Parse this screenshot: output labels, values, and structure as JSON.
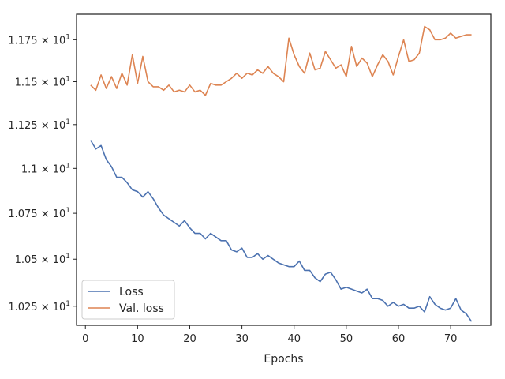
{
  "chart_data": {
    "type": "line",
    "title": "",
    "xlabel": "Epochs",
    "ylabel": "",
    "xlim": [
      -1.7,
      77.7
    ],
    "ylim": [
      10.15,
      11.905
    ],
    "x_ticks": [
      0,
      10,
      20,
      30,
      40,
      50,
      60,
      70
    ],
    "y_ticks": [
      {
        "value": 10.25,
        "mantissa": "1.025",
        "exponent": "1"
      },
      {
        "value": 10.5,
        "mantissa": "1.05",
        "exponent": "1"
      },
      {
        "value": 10.75,
        "mantissa": "1.075",
        "exponent": "1"
      },
      {
        "value": 11.0,
        "mantissa": "1.1",
        "exponent": "1"
      },
      {
        "value": 11.25,
        "mantissa": "1.125",
        "exponent": "1"
      },
      {
        "value": 11.5,
        "mantissa": "1.15",
        "exponent": "1"
      },
      {
        "value": 11.75,
        "mantissa": "1.175",
        "exponent": "1"
      }
    ],
    "y_scale": "log",
    "grid": false,
    "legend_position": "lower-left",
    "series": [
      {
        "name": "Loss",
        "color": "#4c72b0",
        "x": [
          1,
          2,
          3,
          4,
          5,
          6,
          7,
          8,
          9,
          10,
          11,
          12,
          13,
          14,
          15,
          16,
          17,
          18,
          19,
          20,
          21,
          22,
          23,
          24,
          25,
          26,
          27,
          28,
          29,
          30,
          31,
          32,
          33,
          34,
          35,
          36,
          37,
          38,
          39,
          40,
          41,
          42,
          43,
          44,
          45,
          46,
          47,
          48,
          49,
          50,
          51,
          52,
          53,
          54,
          55,
          56,
          57,
          58,
          59,
          60,
          61,
          62,
          63,
          64,
          65,
          66,
          67,
          68,
          69,
          70,
          71,
          72,
          73,
          74
        ],
        "values": [
          11.16,
          11.11,
          11.13,
          11.05,
          11.01,
          10.95,
          10.95,
          10.92,
          10.88,
          10.87,
          10.84,
          10.87,
          10.83,
          10.78,
          10.74,
          10.72,
          10.7,
          10.68,
          10.71,
          10.67,
          10.64,
          10.64,
          10.61,
          10.64,
          10.62,
          10.6,
          10.6,
          10.55,
          10.54,
          10.56,
          10.51,
          10.51,
          10.53,
          10.5,
          10.52,
          10.5,
          10.48,
          10.47,
          10.46,
          10.46,
          10.49,
          10.44,
          10.44,
          10.4,
          10.38,
          10.42,
          10.43,
          10.39,
          10.34,
          10.35,
          10.34,
          10.33,
          10.32,
          10.34,
          10.29,
          10.29,
          10.28,
          10.25,
          10.27,
          10.25,
          10.26,
          10.24,
          10.24,
          10.25,
          10.22,
          10.3,
          10.26,
          10.24,
          10.23,
          10.24,
          10.29,
          10.23,
          10.21,
          10.17
        ]
      },
      {
        "name": "Val. loss",
        "color": "#dd8452",
        "x": [
          1,
          2,
          3,
          4,
          5,
          6,
          7,
          8,
          9,
          10,
          11,
          12,
          13,
          14,
          15,
          16,
          17,
          18,
          19,
          20,
          21,
          22,
          23,
          24,
          25,
          26,
          27,
          28,
          29,
          30,
          31,
          32,
          33,
          34,
          35,
          36,
          37,
          38,
          39,
          40,
          41,
          42,
          43,
          44,
          45,
          46,
          47,
          48,
          49,
          50,
          51,
          52,
          53,
          54,
          55,
          56,
          57,
          58,
          59,
          60,
          61,
          62,
          63,
          64,
          65,
          66,
          67,
          68,
          69,
          70,
          71,
          72,
          73,
          74
        ],
        "values": [
          11.48,
          11.45,
          11.54,
          11.46,
          11.53,
          11.46,
          11.55,
          11.48,
          11.66,
          11.49,
          11.65,
          11.5,
          11.47,
          11.47,
          11.45,
          11.48,
          11.44,
          11.45,
          11.44,
          11.48,
          11.44,
          11.45,
          11.42,
          11.49,
          11.48,
          11.48,
          11.5,
          11.52,
          11.55,
          11.52,
          11.55,
          11.54,
          11.57,
          11.55,
          11.59,
          11.55,
          11.53,
          11.5,
          11.76,
          11.66,
          11.59,
          11.55,
          11.67,
          11.57,
          11.58,
          11.68,
          11.63,
          11.58,
          11.6,
          11.53,
          11.71,
          11.59,
          11.64,
          11.61,
          11.53,
          11.6,
          11.66,
          11.62,
          11.54,
          11.65,
          11.75,
          11.62,
          11.63,
          11.67,
          11.83,
          11.81,
          11.75,
          11.75,
          11.76,
          11.79,
          11.76,
          11.77,
          11.78,
          11.78
        ]
      }
    ]
  }
}
